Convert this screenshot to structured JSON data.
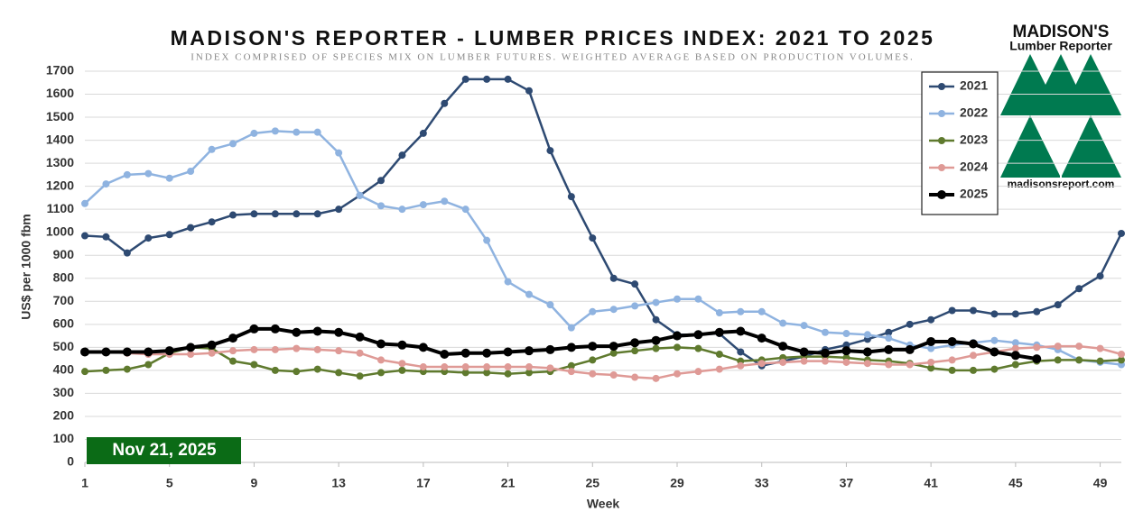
{
  "chart_data": {
    "type": "line",
    "title": "MADISON'S REPORTER - LUMBER PRICES INDEX: 2021 TO 2025",
    "subtitle": "INDEX COMPRISED OF SPECIES MIX ON LUMBER FUTURES. WEIGHTED AVERAGE BASED ON PRODUCTION VOLUMES.",
    "x_label": "Week",
    "y_label": "US$ per 1000 fbm",
    "annotation": "Nov 21, 2025",
    "x": [
      1,
      2,
      3,
      4,
      5,
      6,
      7,
      8,
      9,
      10,
      11,
      12,
      13,
      14,
      15,
      16,
      17,
      18,
      19,
      20,
      21,
      22,
      23,
      24,
      25,
      26,
      27,
      28,
      29,
      30,
      31,
      32,
      33,
      34,
      35,
      36,
      37,
      38,
      39,
      40,
      41,
      42,
      43,
      44,
      45,
      46,
      47,
      48,
      49,
      50
    ],
    "xlim": [
      1,
      50
    ],
    "xticks": [
      1,
      5,
      9,
      13,
      17,
      21,
      25,
      29,
      33,
      37,
      41,
      45,
      49
    ],
    "ylim": [
      0,
      1700
    ],
    "yticks": [
      0,
      100,
      200,
      300,
      400,
      500,
      600,
      700,
      800,
      900,
      1000,
      1100,
      1200,
      1300,
      1400,
      1500,
      1600,
      1700
    ],
    "grid": true,
    "legend": "upper right",
    "series": [
      {
        "name": "2021",
        "color": "#2e4a72",
        "values": [
          985,
          980,
          910,
          975,
          990,
          1020,
          1045,
          1075,
          1080,
          1080,
          1080,
          1080,
          1100,
          1160,
          1225,
          1335,
          1430,
          1560,
          1665,
          1665,
          1665,
          1615,
          1355,
          1155,
          975,
          800,
          775,
          620,
          555,
          555,
          560,
          480,
          420,
          440,
          460,
          490,
          510,
          535,
          565,
          600,
          620,
          660,
          660,
          645,
          645,
          655,
          685,
          755,
          810,
          995
        ]
      },
      {
        "name": "2022",
        "color": "#8fb3e0",
        "values": [
          1125,
          1210,
          1250,
          1255,
          1235,
          1265,
          1360,
          1385,
          1430,
          1440,
          1435,
          1435,
          1345,
          1160,
          1115,
          1100,
          1120,
          1135,
          1100,
          965,
          785,
          730,
          685,
          585,
          655,
          665,
          680,
          695,
          710,
          710,
          650,
          655,
          655,
          605,
          595,
          565,
          560,
          555,
          540,
          510,
          495,
          510,
          520,
          530,
          520,
          510,
          490,
          445,
          435,
          425
        ]
      },
      {
        "name": "2023",
        "color": "#5f7a2e",
        "values": [
          395,
          400,
          405,
          425,
          475,
          500,
          495,
          440,
          425,
          400,
          395,
          405,
          390,
          375,
          390,
          400,
          395,
          395,
          390,
          390,
          385,
          390,
          395,
          420,
          445,
          475,
          485,
          495,
          500,
          495,
          470,
          440,
          445,
          455,
          460,
          460,
          455,
          445,
          440,
          430,
          410,
          400,
          400,
          405,
          425,
          440,
          445,
          445,
          440,
          445
        ]
      },
      {
        "name": "2024",
        "color": "#df9a96",
        "values": [
          480,
          480,
          475,
          470,
          470,
          470,
          475,
          485,
          490,
          490,
          495,
          490,
          485,
          475,
          445,
          430,
          415,
          415,
          415,
          415,
          415,
          415,
          410,
          395,
          385,
          380,
          370,
          365,
          385,
          395,
          405,
          420,
          430,
          435,
          440,
          440,
          435,
          430,
          425,
          425,
          435,
          445,
          465,
          480,
          495,
          500,
          505,
          505,
          495,
          470
        ]
      },
      {
        "name": "2025",
        "color": "#000000",
        "values": [
          480,
          480,
          480,
          480,
          485,
          500,
          510,
          540,
          580,
          580,
          565,
          570,
          565,
          545,
          515,
          510,
          500,
          470,
          475,
          475,
          480,
          485,
          490,
          500,
          505,
          505,
          520,
          530,
          550,
          555,
          565,
          570,
          540,
          505,
          480,
          475,
          485,
          480,
          490,
          490,
          525,
          525,
          515,
          480,
          465,
          450,
          null,
          null,
          null,
          null
        ]
      }
    ]
  },
  "logo": {
    "name": "MADISON'S",
    "subtitle": "Lumber Reporter",
    "url": "madisonsreport.com"
  }
}
